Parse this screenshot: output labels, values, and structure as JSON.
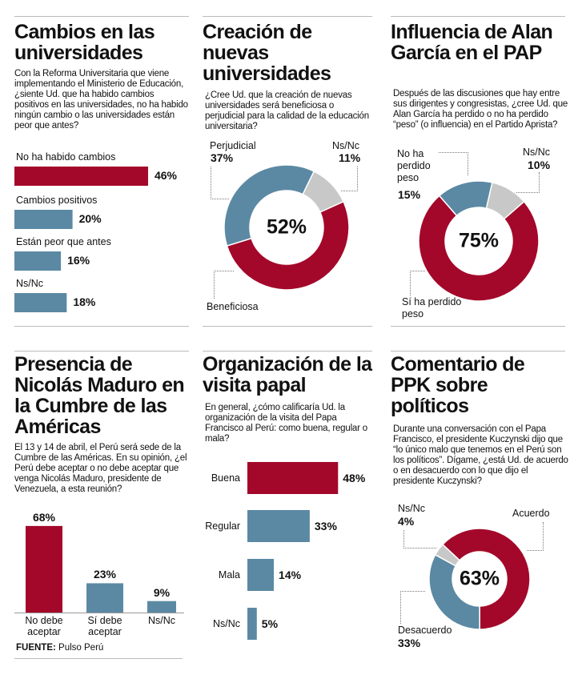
{
  "colors": {
    "red": "#a3082a",
    "blue": "#5b89a3",
    "gray": "#c8c8c8"
  },
  "source": {
    "label": "FUENTE:",
    "value": "Pulso Perú"
  },
  "chart_data": [
    {
      "type": "bar",
      "orientation": "horizontal",
      "title": "Cambios en las universidades",
      "question": "Con la Reforma Universitaria que viene implementando el Ministerio de Educación, ¿siente Ud. que ha habido cambios positivos en las universidades, no ha habido ningún cambio o las universidades están peor que antes?",
      "categories": [
        "No ha habido cambios",
        "Cambios positivos",
        "Están peor que antes",
        "Ns/Nc"
      ],
      "values": [
        46,
        20,
        16,
        18
      ],
      "labels": [
        "46%",
        "20%",
        "16%",
        "18%"
      ],
      "highlight": 0
    },
    {
      "type": "pie",
      "donut": true,
      "title": "Creación de nuevas universidades",
      "question": "¿Cree Ud. que la creación de nuevas universidades será beneficiosa o perjudicial para la calidad de la educación universitaria?",
      "categories": [
        "Ns/Nc",
        "Beneficiosa",
        "Perjudicial"
      ],
      "values": [
        11,
        52,
        37
      ],
      "labels": [
        "11%",
        "",
        "37%"
      ],
      "center_label": "52%"
    },
    {
      "type": "pie",
      "donut": true,
      "title": "Influencia de Alan García en el PAP",
      "question": "Después de las discusiones que hay entre sus dirigentes y congresistas, ¿cree Ud. que Alan García ha perdido o no ha perdido “peso” (o influencia) en el Partido Aprista?",
      "categories": [
        "Ns/Nc",
        "Sí ha perdido peso",
        "No ha perdido peso"
      ],
      "values": [
        10,
        75,
        15
      ],
      "labels": [
        "10%",
        "",
        "15%"
      ],
      "center_label": "75%"
    },
    {
      "type": "bar",
      "orientation": "vertical",
      "title": "Presencia de Nicolás Maduro en la Cumbre de las Américas",
      "question": "El 13 y 14 de abril, el Perú será sede de la Cumbre de las Américas. En su opinión, ¿el Perú debe aceptar o no debe aceptar que venga Nicolás Maduro, presidente de Venezuela, a esta reunión?",
      "categories": [
        "No debe aceptar",
        "Sí debe aceptar",
        "Ns/Nc"
      ],
      "values": [
        68,
        23,
        9
      ],
      "labels": [
        "68%",
        "23%",
        "9%"
      ],
      "highlight": 0
    },
    {
      "type": "bar",
      "orientation": "horizontal",
      "title": "Organización de la visita papal",
      "question": "En general, ¿cómo calificaría Ud. la organización de la visita del Papa Francisco al Perú: como buena, regular o mala?",
      "categories": [
        "Buena",
        "Regular",
        "Mala",
        "Ns/Nc"
      ],
      "values": [
        48,
        33,
        14,
        5
      ],
      "labels": [
        "48%",
        "33%",
        "14%",
        "5%"
      ],
      "highlight": 0
    },
    {
      "type": "pie",
      "donut": true,
      "title": "Comentario de PPK sobre políticos",
      "question": "Durante una conversación con el Papa Francisco, el presidente Kuczynski dijo que “lo único malo que tenemos en el Perú son los políticos”. Dígame, ¿está Ud. de acuerdo o en desacuerdo con lo que dijo el presidente Kuczynski?",
      "categories": [
        "Acuerdo",
        "Desacuerdo",
        "Ns/Nc"
      ],
      "values": [
        63,
        33,
        4
      ],
      "labels": [
        "",
        "33%",
        "4%"
      ],
      "center_label": "63%"
    }
  ]
}
